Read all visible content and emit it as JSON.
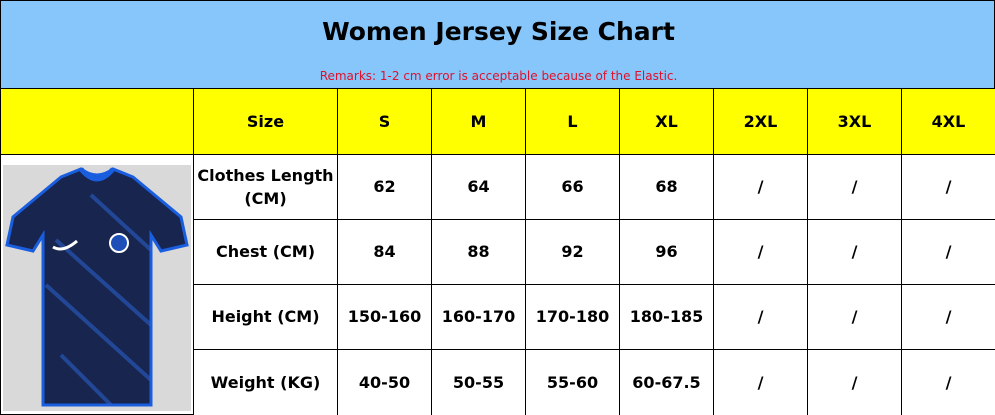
{
  "header": {
    "title": "Women Jersey Size Chart",
    "remarks": "Remarks: 1-2 cm error is acceptable because of the Elastic."
  },
  "table": {
    "columns": [
      "Size",
      "S",
      "M",
      "L",
      "XL",
      "2XL",
      "3XL",
      "4XL"
    ],
    "rows": [
      [
        "Clothes Length (CM)",
        "62",
        "64",
        "66",
        "68",
        "/",
        "/",
        "/"
      ],
      [
        "Chest (CM)",
        "84",
        "88",
        "92",
        "96",
        "/",
        "/",
        "/"
      ],
      [
        "Height (CM)",
        "150-160",
        "160-170",
        "170-180",
        "180-185",
        "/",
        "/",
        "/"
      ],
      [
        "Weight (KG)",
        "40-50",
        "50-55",
        "55-60",
        "60-67.5",
        "/",
        "/",
        "/"
      ]
    ]
  }
}
